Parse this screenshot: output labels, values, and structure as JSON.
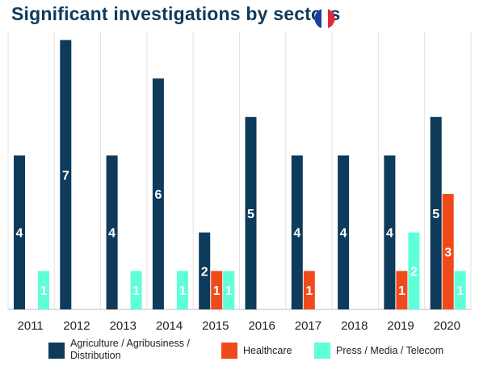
{
  "title": "Significant investigations by sectors",
  "flag": {
    "icon": "france-flag-icon",
    "colors": [
      "#1c3f9e",
      "#ffffff",
      "#e4283b"
    ]
  },
  "chart_data": {
    "type": "bar",
    "categories": [
      "2011",
      "2012",
      "2013",
      "2014",
      "2015",
      "2016",
      "2017",
      "2018",
      "2019",
      "2020"
    ],
    "series": [
      {
        "name": "Agriculture / Agribusiness / Distribution",
        "color": "#0e3a5b",
        "values": [
          4,
          7,
          4,
          6,
          2,
          5,
          4,
          4,
          4,
          5
        ]
      },
      {
        "name": "Healthcare",
        "color": "#f04a1c",
        "values": [
          0,
          0,
          0,
          0,
          1,
          0,
          1,
          0,
          1,
          3
        ]
      },
      {
        "name": "Press / Media / Telecom",
        "color": "#5fffd8",
        "values": [
          1,
          0,
          1,
          1,
          1,
          0,
          0,
          0,
          2,
          1
        ]
      }
    ],
    "legend_position": "bottom",
    "grid": "vertical separators",
    "ylim": [
      0,
      7.2
    ]
  },
  "legend": {
    "items": [
      {
        "label_line1": "Agriculture / Agribusiness /",
        "label_line2": "Distribution",
        "color": "#0e3a5b"
      },
      {
        "label_line1": "Healthcare",
        "label_line2": "",
        "color": "#f04a1c"
      },
      {
        "label_line1": "Press / Media / Telecom",
        "label_line2": "",
        "color": "#5fffd8"
      }
    ]
  }
}
